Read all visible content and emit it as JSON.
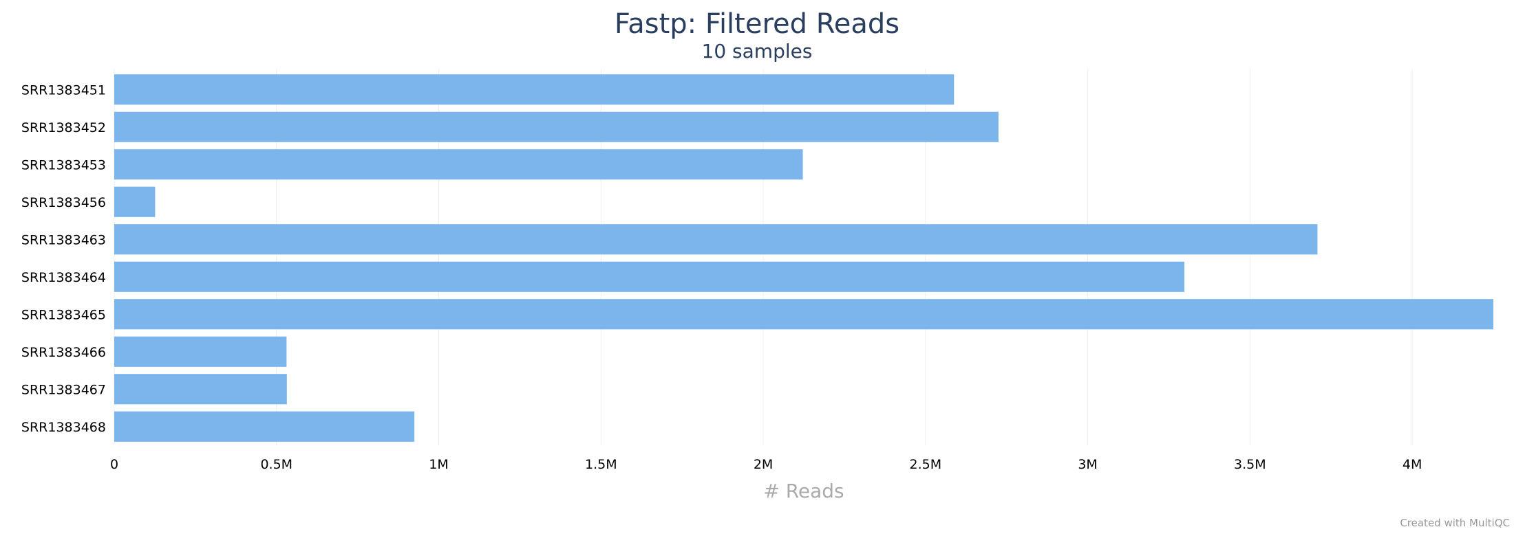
{
  "chart_data": {
    "type": "bar",
    "orientation": "horizontal",
    "title": "Fastp: Filtered Reads",
    "subtitle": "10 samples",
    "xlabel": "# Reads",
    "ylabel": "",
    "categories": [
      "SRR1383451",
      "SRR1383452",
      "SRR1383453",
      "SRR1383456",
      "SRR1383463",
      "SRR1383464",
      "SRR1383465",
      "SRR1383466",
      "SRR1383467",
      "SRR1383468"
    ],
    "values": [
      2588000,
      2725000,
      2122000,
      126000,
      3708000,
      3298000,
      4250000,
      531000,
      532000,
      925000
    ],
    "xlim": [
      0,
      4250000
    ],
    "xticks": [
      {
        "value": 0,
        "label": "0"
      },
      {
        "value": 500000,
        "label": "0.5M"
      },
      {
        "value": 1000000,
        "label": "1M"
      },
      {
        "value": 1500000,
        "label": "1.5M"
      },
      {
        "value": 2000000,
        "label": "2M"
      },
      {
        "value": 2500000,
        "label": "2.5M"
      },
      {
        "value": 3000000,
        "label": "3M"
      },
      {
        "value": 3500000,
        "label": "3.5M"
      },
      {
        "value": 4000000,
        "label": "4M"
      }
    ],
    "grid": true,
    "legend": "none",
    "bar_color": "#7cb5ec",
    "grid_color": "#eeeeee"
  },
  "credit": "Created with MultiQC"
}
